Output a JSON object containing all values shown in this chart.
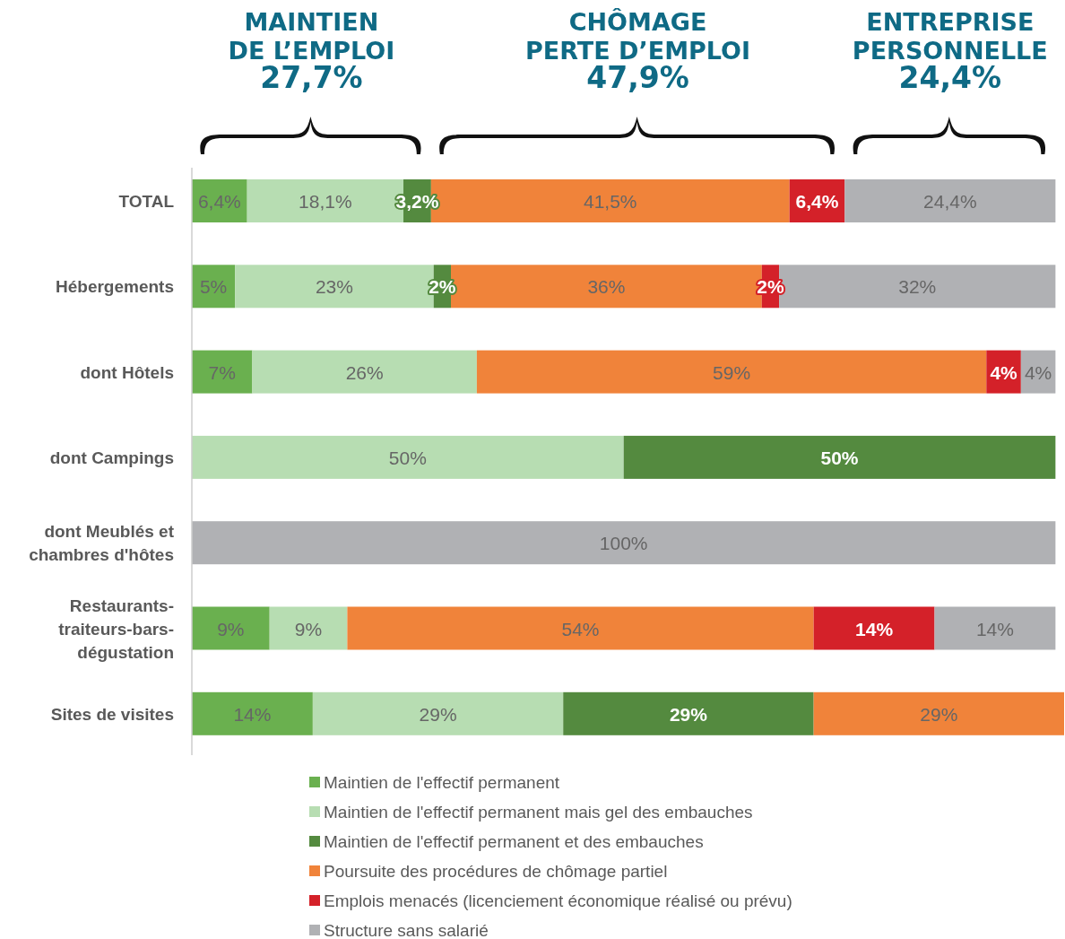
{
  "chart_data": {
    "type": "bar",
    "orientation": "horizontal",
    "stacked": true,
    "legend": "bottom",
    "categories": [
      "TOTAL",
      "Hébergements",
      "dont Hôtels",
      "dont Campings",
      "dont Meublés et\nchambres d'hôtes",
      "Restaurants-\ntraiteurs-bars-\ndégustation",
      "Sites de visites"
    ],
    "annotations": [
      "MAINTIEN\nDE L’EMPLOI\n27,7%",
      "CHÔMAGE\nPERTE D’EMPLOI\n47,9%",
      "ENTREPRISE\nPERSONNELLE\n24,4%"
    ],
    "series": [
      {
        "name": "Maintien de l'effectif permanent",
        "color": "#6ab04f",
        "values": [
          6.4,
          5,
          7,
          null,
          null,
          9,
          14
        ],
        "value_labels": [
          "6,4%",
          "5%",
          "7%",
          null,
          null,
          "9%",
          "14%"
        ]
      },
      {
        "name": "Maintien de l'effectif permanent mais gel des embauches",
        "color": "#b7ddb2",
        "values": [
          18.1,
          23,
          26,
          50,
          null,
          9,
          29
        ],
        "value_labels": [
          "18,1%",
          "23%",
          "26%",
          "50%",
          null,
          "9%",
          "29%"
        ]
      },
      {
        "name": "Maintien de l'effectif permanent et des embauches",
        "color": "#548a3f",
        "values": [
          3.2,
          2,
          null,
          50,
          null,
          null,
          29
        ],
        "value_labels": [
          "3,2%",
          "2%",
          null,
          "50%",
          null,
          null,
          "29%"
        ]
      },
      {
        "name": "Poursuite des procédures de chômage partiel",
        "color": "#f0833a",
        "values": [
          41.5,
          36,
          59,
          null,
          null,
          54,
          29
        ],
        "value_labels": [
          "41,5%",
          "36%",
          "59%",
          null,
          null,
          "54%",
          "29%"
        ]
      },
      {
        "name": "Emplois menacés (licenciement économique réalisé ou prévu)",
        "color": "#d42129",
        "values": [
          6.4,
          2,
          4,
          null,
          null,
          14,
          null
        ],
        "value_labels": [
          "6,4%",
          "2%",
          "4%",
          null,
          null,
          "14%",
          null
        ]
      },
      {
        "name": "Structure sans salarié",
        "color": "#b0b1b4",
        "values": [
          24.4,
          32,
          4,
          null,
          100,
          14,
          null
        ],
        "value_labels": [
          "24,4%",
          "32%",
          "4%",
          null,
          "100%",
          "14%",
          null
        ]
      }
    ]
  }
}
